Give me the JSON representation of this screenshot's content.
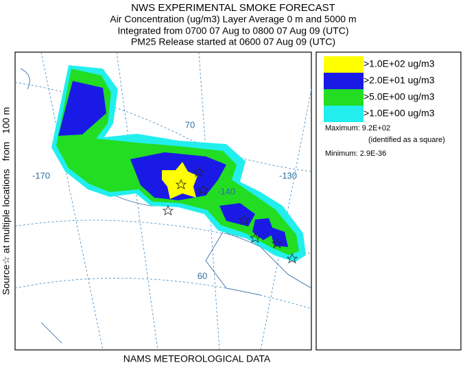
{
  "header": {
    "title": "NWS EXPERIMENTAL SMOKE FORECAST",
    "lines": [
      "Air Concentration (ug/m3) Layer Average    0 m and  5000 m",
      "Integrated from 0700 07 Aug to 0800 07 Aug 09 (UTC)",
      "PM25 Release started at 0600 07 Aug 09 (UTC)"
    ]
  },
  "side_label": "Source☆ at multiple locations   from   100 m",
  "footer": "NAMS METEOROLOGICAL DATA",
  "legend": {
    "items": [
      {
        "label": ">1.0E+02 ug/m3",
        "color": "#ffff00"
      },
      {
        "label": ">2.0E+01 ug/m3",
        "color": "#1a1ae6"
      },
      {
        "label": ">5.0E+00 ug/m3",
        "color": "#22dd22"
      },
      {
        "label": ">1.0E+00 ug/m3",
        "color": "#22eeee"
      }
    ],
    "maximum": "Maximum: 9.2E+02",
    "max_note": "(identified as a square)",
    "minimum": "Minimum: 2.9E-36"
  },
  "map_labels": [
    "-170",
    "70",
    "-140",
    "-130",
    "60"
  ]
}
